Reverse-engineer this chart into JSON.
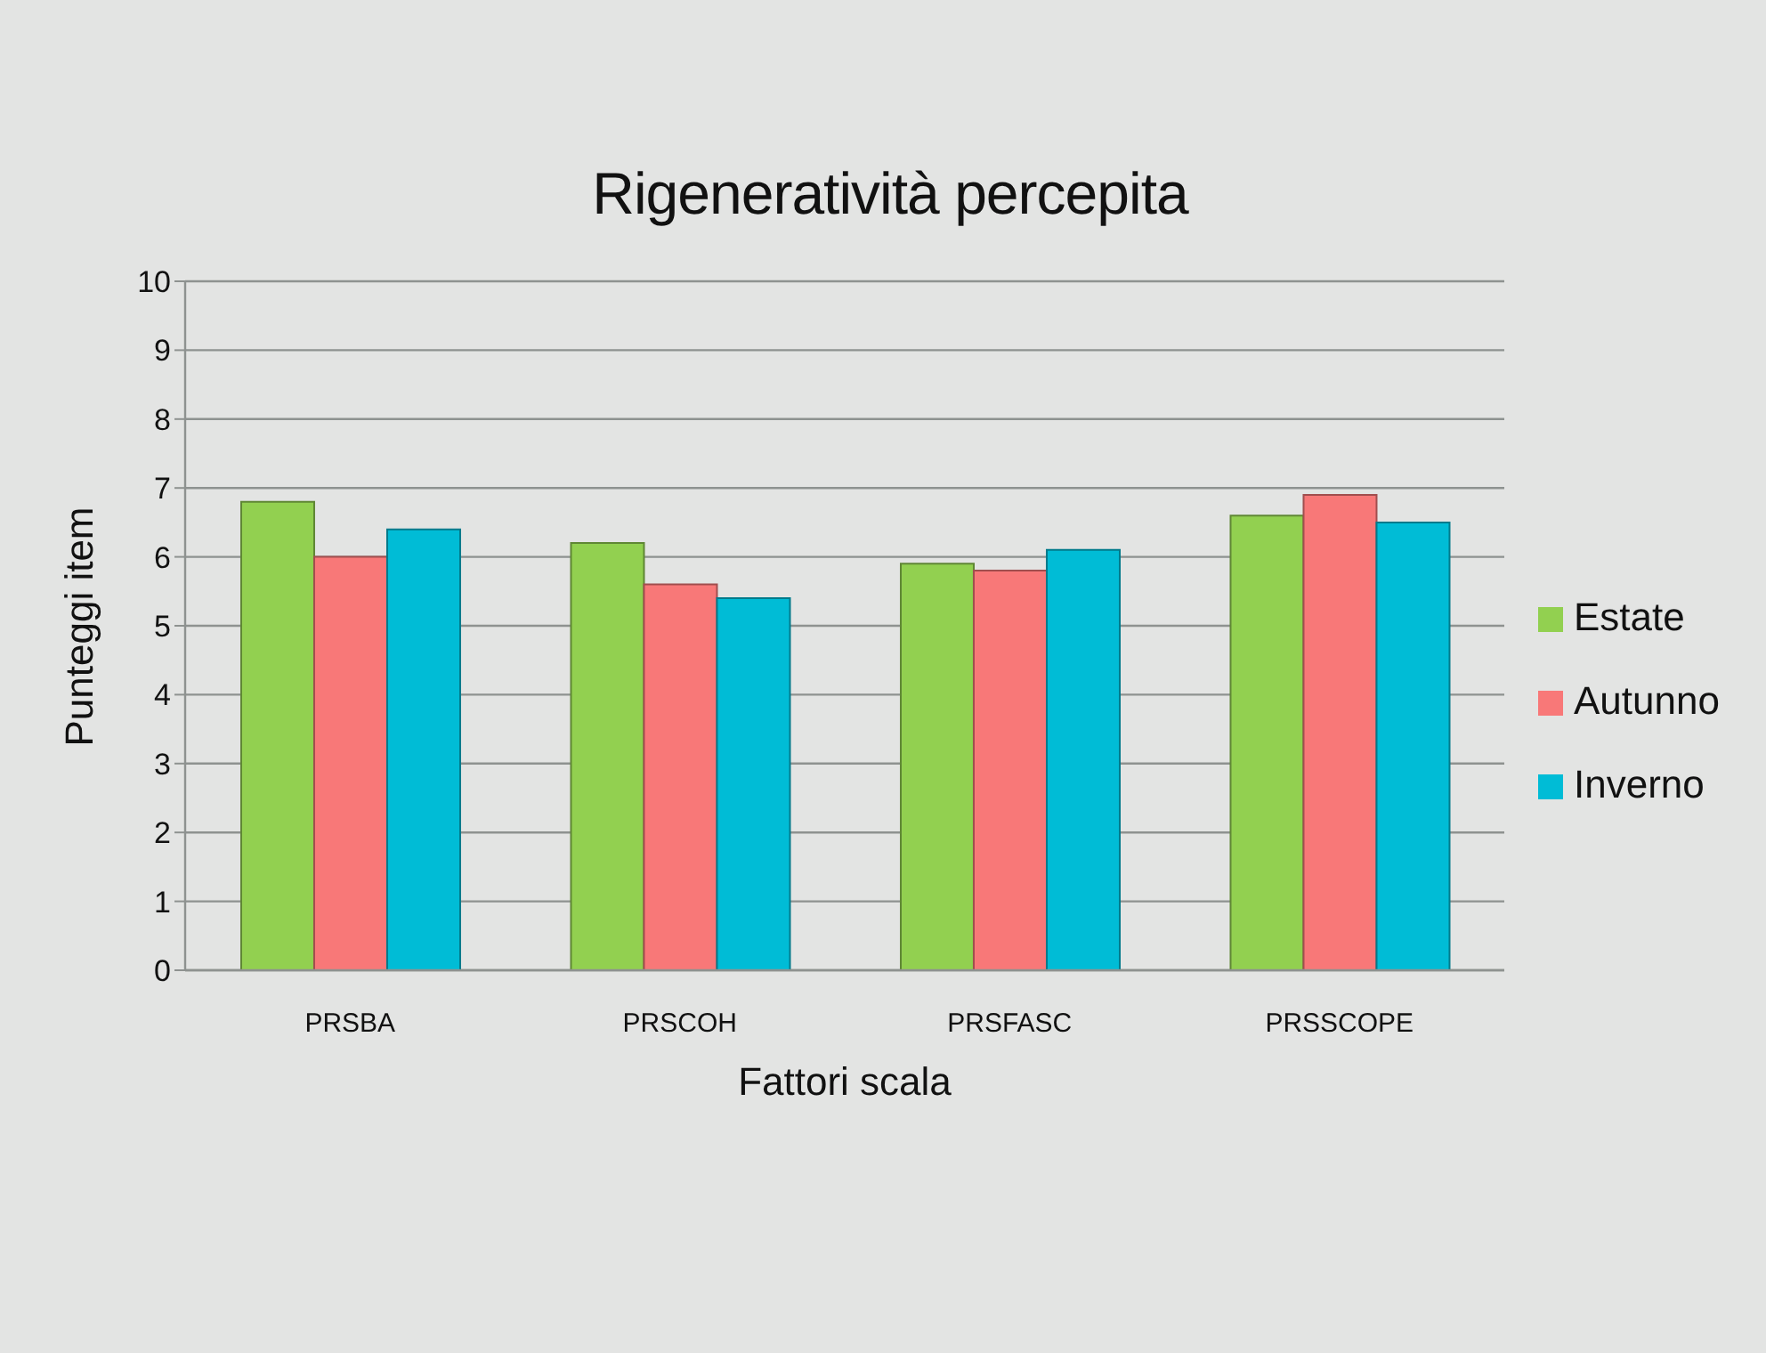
{
  "chart_data": {
    "type": "bar",
    "title": "Rigeneratività percepita",
    "xlabel": "Fattori scala",
    "ylabel": "Punteggi item",
    "categories": [
      "PRSBA",
      "PRSCOH",
      "PRSFASC",
      "PRSSCOPE"
    ],
    "series": [
      {
        "name": "Estate",
        "color": "#92d050",
        "values": [
          6.8,
          6.2,
          5.9,
          6.6
        ]
      },
      {
        "name": "Autunno",
        "color": "#f87878",
        "values": [
          6.0,
          5.6,
          5.8,
          6.9
        ]
      },
      {
        "name": "Inverno",
        "color": "#00bcd6",
        "values": [
          6.4,
          5.4,
          6.1,
          6.5
        ]
      }
    ],
    "ylim": [
      0,
      10
    ],
    "yticks": [
      0,
      1,
      2,
      3,
      4,
      5,
      6,
      7,
      8,
      9,
      10
    ],
    "grid": "y",
    "legend": "right"
  }
}
